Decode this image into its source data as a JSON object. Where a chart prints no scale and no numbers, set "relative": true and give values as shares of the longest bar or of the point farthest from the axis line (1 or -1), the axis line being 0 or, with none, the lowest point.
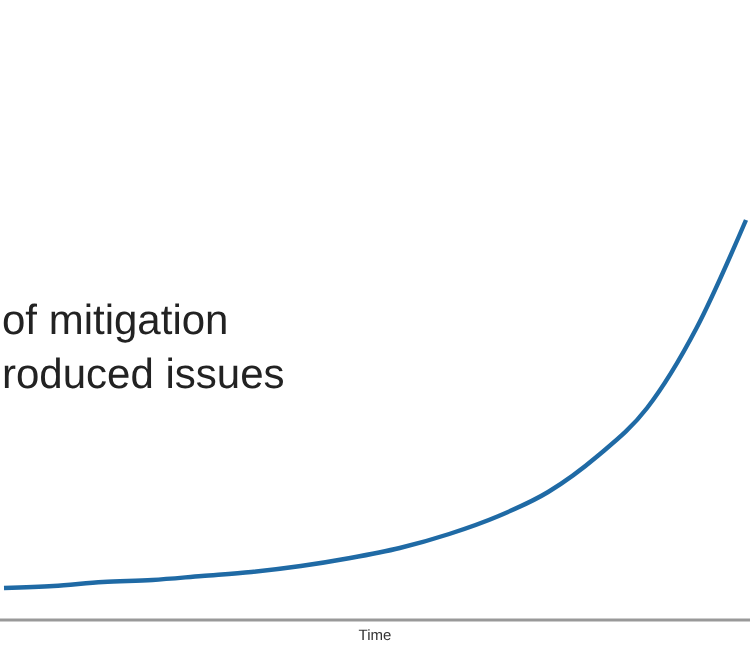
{
  "chart_data": {
    "type": "line",
    "relative": true,
    "xlabel": "Time",
    "annotations": [
      "of mitigation",
      "roduced issues"
    ],
    "categories": [
      null,
      null,
      null,
      null,
      null,
      null,
      null,
      null,
      null,
      null,
      null,
      null,
      null,
      null,
      null,
      null
    ],
    "series": [
      {
        "color": "#1f6aa5",
        "values": [
          0.08,
          0.085,
          0.095,
          0.1,
          0.11,
          0.12,
          0.135,
          0.155,
          0.18,
          0.215,
          0.26,
          0.32,
          0.41,
          0.53,
          0.73,
          1
        ]
      }
    ],
    "marker": "none"
  }
}
